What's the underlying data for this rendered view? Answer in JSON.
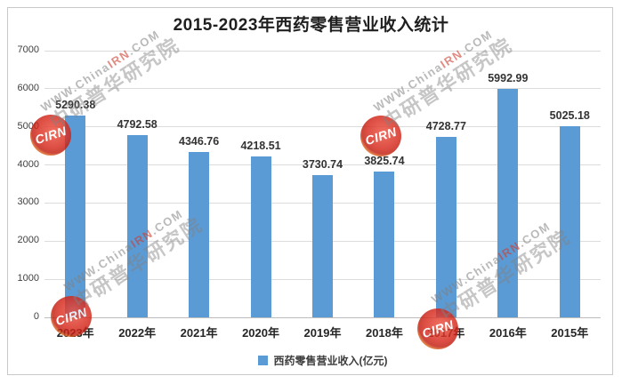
{
  "title": "2015-2023年西药零售营业收入统计",
  "chart_data": {
    "type": "bar",
    "title": "2015-2023年西药零售营业收入统计",
    "categories": [
      "2023年",
      "2022年",
      "2021年",
      "2020年",
      "2019年",
      "2018年",
      "2017年",
      "2016年",
      "2015年"
    ],
    "values": [
      5290.38,
      4792.58,
      4346.76,
      4218.51,
      3730.74,
      3825.74,
      4728.77,
      5992.99,
      5025.18
    ],
    "series_name": "西药零售营业收入(亿元)",
    "ylim": [
      0,
      7000
    ],
    "yticks": [
      0,
      1000,
      2000,
      3000,
      4000,
      5000,
      6000,
      7000
    ],
    "xlabel": "",
    "ylabel": "",
    "grid": true,
    "legend_position": "bottom",
    "bar_color": "#5B9BD5"
  },
  "legend": {
    "label": "西药零售营业收入(亿元)",
    "marker_color": "#5B9BD5"
  },
  "watermark": {
    "badge_text": "CIRN",
    "url_gray1": "WWW.China",
    "url_red": "IRN",
    "url_gray2": ".COM",
    "cn_text": "中研普华研究院"
  },
  "colors": {
    "bar": "#5B9BD5",
    "gridline": "#dcdcdc",
    "axis_line": "#bdbdbd",
    "frame_border": "#c9c9c9",
    "label_text": "#333333"
  }
}
